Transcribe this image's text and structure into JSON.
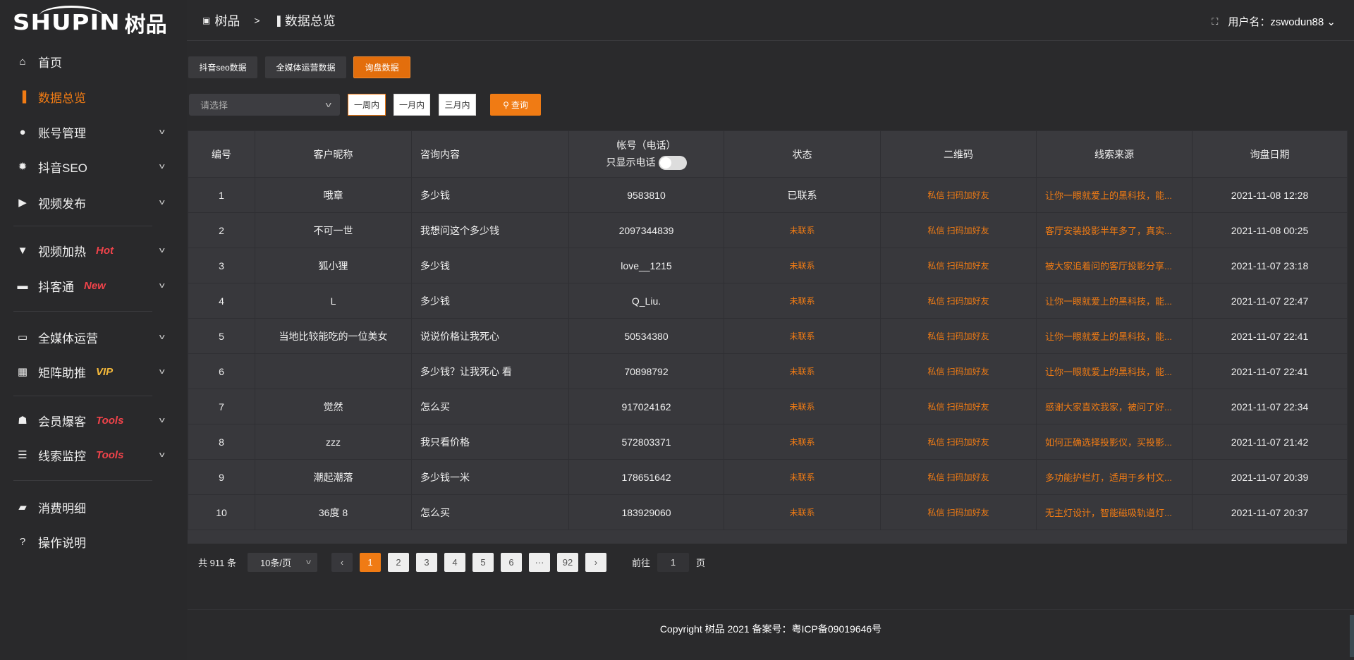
{
  "brand": {
    "logo_en": "SHUPIN",
    "logo_cn": "树品"
  },
  "header": {
    "breadcrumb": [
      "树品",
      "数据总览"
    ],
    "separator": ">",
    "user_label": "用户名：zswodun88",
    "fullscreen_icon": "fullscreen-icon"
  },
  "sidebar": {
    "items": [
      {
        "label": "首页",
        "icon": "home-icon"
      },
      {
        "label": "数据总览",
        "icon": "bar-chart-icon",
        "active": true
      },
      {
        "label": "账号管理",
        "icon": "user-icon",
        "expand": true
      },
      {
        "label": "抖音SEO",
        "icon": "gear-icon",
        "expand": true
      },
      {
        "label": "视频发布",
        "icon": "video-icon",
        "expand": true
      },
      {
        "label": "视频加热",
        "icon": "flame-icon",
        "badge": "Hot",
        "badge_color": "#f0434a",
        "expand": true
      },
      {
        "label": "抖客通",
        "icon": "chat-icon",
        "badge": "New",
        "badge_color": "#f0434a",
        "expand": true
      },
      {
        "label": "全媒体运营",
        "icon": "monitor-icon",
        "expand": true
      },
      {
        "label": "矩阵助推",
        "icon": "grid-icon",
        "badge": "VIP",
        "badge_color": "#f5b93a",
        "expand": true
      },
      {
        "label": "会员爆客",
        "icon": "member-icon",
        "badge": "Tools",
        "badge_color": "#f0434a",
        "expand": true
      },
      {
        "label": "线索监控",
        "icon": "sliders-icon",
        "badge": "Tools",
        "badge_color": "#f0434a",
        "expand": true
      },
      {
        "label": "消费明细",
        "icon": "wallet-icon"
      },
      {
        "label": "操作说明",
        "icon": "help-icon"
      }
    ]
  },
  "tabs": [
    "抖音seo数据",
    "全媒体运营数据",
    "询盘数据"
  ],
  "active_tab": 2,
  "filter": {
    "select_placeholder": "请选择",
    "ranges": [
      "一周内",
      "一月内",
      "三月内"
    ],
    "selected_range": 0,
    "query_label": "查询"
  },
  "table": {
    "headers": [
      "编号",
      "客户昵称",
      "咨询内容",
      "帐号（电话）",
      "状态",
      "二维码",
      "线索来源",
      "询盘日期"
    ],
    "phone_toggle_label": "只显示电话",
    "phone_toggle_on": false,
    "rows": [
      [
        "1",
        "哦章",
        "多少钱",
        "9583810",
        "已联系",
        "私信 扫码加好友",
        "让你一眼就爱上的黑科技，能...",
        "2021-11-08 12:28"
      ],
      [
        "2",
        "不可一世",
        "我想问这个多少钱",
        "2097344839",
        "未联系",
        "私信 扫码加好友",
        "客厅安装投影半年多了，真实...",
        "2021-11-08 00:25"
      ],
      [
        "3",
        "狐小狸",
        "多少钱",
        "love__1215",
        "未联系",
        "私信 扫码加好友",
        "被大家追着问的客厅投影分享...",
        "2021-11-07 23:18"
      ],
      [
        "4",
        "L",
        "多少钱",
        "Q_Liu.",
        "未联系",
        "私信 扫码加好友",
        "让你一眼就爱上的黑科技，能...",
        "2021-11-07 22:47"
      ],
      [
        "5",
        "当地比较能吃的一位美女",
        "说说价格让我死心",
        "50534380",
        "未联系",
        "私信 扫码加好友",
        "让你一眼就爱上的黑科技，能...",
        "2021-11-07 22:41"
      ],
      [
        "6",
        "",
        "多少钱？让我死心 看",
        "70898792",
        "未联系",
        "私信 扫码加好友",
        "让你一眼就爱上的黑科技，能...",
        "2021-11-07 22:41"
      ],
      [
        "7",
        "觉然",
        "怎么买",
        "917024162",
        "未联系",
        "私信 扫码加好友",
        "感谢大家喜欢我家，被问了好...",
        "2021-11-07 22:34"
      ],
      [
        "8",
        "zzz",
        "我只看价格",
        "572803371",
        "未联系",
        "私信 扫码加好友",
        "如何正确选择投影仪，买投影...",
        "2021-11-07 21:42"
      ],
      [
        "9",
        "潮起潮落",
        "多少钱一米",
        "178651642",
        "未联系",
        "私信 扫码加好友",
        "多功能护栏灯，适用于乡村文...",
        "2021-11-07 20:39"
      ],
      [
        "10",
        "36度 8",
        "怎么买",
        "183929060",
        "未联系",
        "私信 扫码加好友",
        "无主灯设计，智能磁吸轨道灯...",
        "2021-11-07 20:37"
      ]
    ]
  },
  "pagination": {
    "total_label": "共 911 条",
    "page_size": "10条/页",
    "pages": [
      "1",
      "2",
      "3",
      "4",
      "5",
      "6",
      "···",
      "92"
    ],
    "current": "1",
    "goto_prefix": "前往",
    "goto_value": "1",
    "goto_suffix": "页"
  },
  "footer": {
    "copyright": "Copyright 树品 2021 备案号：粤ICP备09019646号"
  },
  "colors": {
    "accent": "#f07b14",
    "sidebar_bg": "#29292b",
    "table_bg": "#38383c"
  }
}
